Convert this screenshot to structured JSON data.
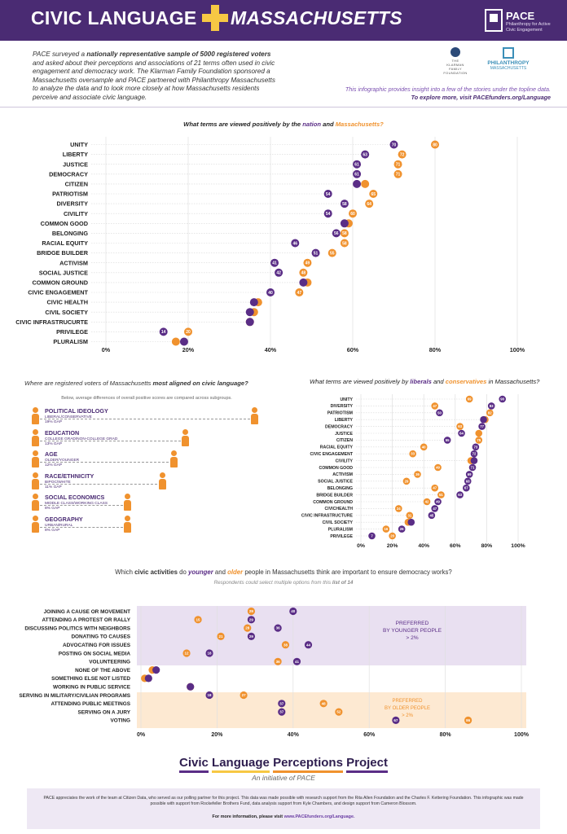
{
  "header": {
    "title_left": "CIVIC LANGUAGE",
    "title_right": "MASSACHUSETTS",
    "logo_name": "PACE",
    "logo_sub": "Philanthropy for Active Civic Engagement"
  },
  "intro": {
    "t1": "PACE surveyed a ",
    "t1b": "nationally representative sample of 5000 registered voters",
    "t2": " and asked about their perceptions and associations of 21 terms often used in civic engagement and democracy work. The Klarman Family Foundation sponsored a Massachusetts oversample and PACE partnered with Philanthropy Massachusetts to analyze the data and to look more closely at how Massachusetts residents perceive and associate civic language."
  },
  "partners": {
    "klarman": "THE KLARMAN FAMILY FOUNDATION",
    "phil_1": "PHILANTHROPY",
    "phil_2": "MASSACHUSETTS"
  },
  "explore": {
    "line1": "This infographic provides insight into a few of the stories under the topline data.",
    "line2": "To explore more, visit PACEfunders.org/Language"
  },
  "colors": {
    "purple": "#5a2d86",
    "orange": "#f0922e",
    "header": "#4a2b73",
    "yellow": "#f7c844"
  },
  "chart_data": [
    {
      "type": "scatter",
      "title_pre": "What terms are viewed positively by the ",
      "title_s1": "nation",
      "title_mid": " and ",
      "title_s2": "Massachusetts?",
      "xlim": [
        0,
        100
      ],
      "ticks": [
        "0%",
        "20%",
        "40%",
        "60%",
        "80%",
        "100%"
      ],
      "series": [
        {
          "name": "nation",
          "color": "#5a2d86"
        },
        {
          "name": "Massachusetts",
          "color": "#f0922e"
        }
      ],
      "rows": [
        {
          "term": "UNITY",
          "nation": 70,
          "ma": 80
        },
        {
          "term": "LIBERTY",
          "nation": 63,
          "ma": 72
        },
        {
          "term": "JUSTICE",
          "nation": 61,
          "ma": 71
        },
        {
          "term": "DEMOCRACY",
          "nation": 61,
          "ma": 71
        },
        {
          "term": "CITIZEN",
          "nation": 61,
          "ma": 63
        },
        {
          "term": "PATRIOTISM",
          "nation": 54,
          "ma": 65
        },
        {
          "term": "DIVERSITY",
          "nation": 58,
          "ma": 64
        },
        {
          "term": "CIVILITY",
          "nation": 54,
          "ma": 60
        },
        {
          "term": "COMMON GOOD",
          "nation": 58,
          "ma": 59
        },
        {
          "term": "BELONGING",
          "nation": 56,
          "ma": 58
        },
        {
          "term": "RACIAL EQUITY",
          "nation": 46,
          "ma": 58
        },
        {
          "term": "BRIDGE BUILDER",
          "nation": 51,
          "ma": 55
        },
        {
          "term": "ACTIVISM",
          "nation": 41,
          "ma": 49
        },
        {
          "term": "SOCIAL JUSTICE",
          "nation": 42,
          "ma": 48
        },
        {
          "term": "COMMON GROUND",
          "nation": 48,
          "ma": 49
        },
        {
          "term": "CIVIC ENGAGEMENT",
          "nation": 40,
          "ma": 47
        },
        {
          "term": "CIVIC HEALTH",
          "nation": 36,
          "ma": 37
        },
        {
          "term": "CIVIL SOCIETY",
          "nation": 35,
          "ma": 36
        },
        {
          "term": "CIVIC INFRASTRUCURTE",
          "nation": 35,
          "ma": 35
        },
        {
          "term": "PRIVILEGE",
          "nation": 14,
          "ma": 20
        },
        {
          "term": "PLURALISM",
          "nation": 19,
          "ma": 17
        }
      ],
      "labels": [
        [
          "70",
          "80"
        ],
        [
          "63",
          "72"
        ],
        [
          "61",
          "71"
        ],
        [
          "61",
          "71"
        ],
        [
          "",
          ""
        ],
        [
          "54",
          "65"
        ],
        [
          "58",
          "64"
        ],
        [
          "54",
          "60"
        ],
        [
          "",
          ""
        ],
        [
          "56",
          "58"
        ],
        [
          "46",
          "58"
        ],
        [
          "51",
          "55"
        ],
        [
          "41",
          "49"
        ],
        [
          "42",
          "48"
        ],
        [
          "",
          ""
        ],
        [
          "40",
          "47"
        ],
        [
          "",
          ""
        ],
        [
          "",
          ""
        ],
        [
          "",
          ""
        ],
        [
          "14",
          "20"
        ],
        [
          "",
          ""
        ]
      ]
    },
    {
      "type": "scatter",
      "title_pre": "What terms are viewed positively by ",
      "title_s1": "liberals",
      "title_mid": " and ",
      "title_s2": "conservatives",
      "title_post": " in Massachusetts?",
      "xlim": [
        0,
        100
      ],
      "ticks": [
        "0%",
        "20%",
        "40%",
        "60%",
        "80%",
        "100%"
      ],
      "series": [
        {
          "name": "liberals",
          "color": "#5a2d86"
        },
        {
          "name": "conservatives",
          "color": "#f0922e"
        }
      ],
      "rows": [
        {
          "term": "UNITY",
          "lib": 90,
          "con": 69
        },
        {
          "term": "DIVERSITY",
          "lib": 83,
          "con": 47
        },
        {
          "term": "PATRIOTISM",
          "lib": 50,
          "con": 82
        },
        {
          "term": "LIBERTY",
          "lib": 78,
          "con": 79
        },
        {
          "term": "DEMOCRACY",
          "lib": 77,
          "con": 63
        },
        {
          "term": "JUSTICE",
          "lib": 64,
          "con": 75
        },
        {
          "term": "CITIZEN",
          "lib": 55,
          "con": 75
        },
        {
          "term": "RACIAL EQUITY",
          "lib": 73,
          "con": 40
        },
        {
          "term": "CIVIC ENGAGEMENT",
          "lib": 72,
          "con": 33
        },
        {
          "term": "CIVILITY",
          "lib": 72,
          "con": 70
        },
        {
          "term": "COMMON GOOD",
          "lib": 71,
          "con": 49
        },
        {
          "term": "ACTIVISM",
          "lib": 69,
          "con": 36
        },
        {
          "term": "SOCIAL JUSTICE",
          "lib": 68,
          "con": 29
        },
        {
          "term": "BELONGING",
          "lib": 67,
          "con": 47
        },
        {
          "term": "BRIDGE BUILDER",
          "lib": 63,
          "con": 51
        },
        {
          "term": "COMMON GROUND",
          "lib": 49,
          "con": 42
        },
        {
          "term": "CIVICHEALTH",
          "lib": 47,
          "con": 24
        },
        {
          "term": "CIVIC INFRASTRUCTURE",
          "lib": 45,
          "con": 31
        },
        {
          "term": "CIVIL SOCIETY",
          "lib": 32,
          "con": 30
        },
        {
          "term": "PLURALISM",
          "lib": 26,
          "con": 16
        },
        {
          "term": "PRIVILEGE",
          "lib": 7,
          "con": 20
        }
      ],
      "labels": [
        [
          "90",
          "69"
        ],
        [
          "83",
          "47"
        ],
        [
          "50",
          "82"
        ],
        [
          "",
          ""
        ],
        [
          "77",
          "63"
        ],
        [
          "64",
          ""
        ],
        [
          "55",
          "75"
        ],
        [
          "73",
          "40"
        ],
        [
          "72",
          "33"
        ],
        [
          "",
          ""
        ],
        [
          "71",
          "49"
        ],
        [
          "69",
          "36"
        ],
        [
          "68",
          "29"
        ],
        [
          "67",
          "47"
        ],
        [
          "63",
          "51"
        ],
        [
          "49",
          "42"
        ],
        [
          "47",
          "24"
        ],
        [
          "45",
          "31"
        ],
        [
          "",
          ""
        ],
        [
          "26",
          "16"
        ],
        [
          "7",
          "20"
        ]
      ]
    },
    {
      "type": "scatter",
      "title_pre": "Which ",
      "title_s1": "civic activities",
      "title_mid": " do ",
      "title_s2": "younger",
      "title_and": " and ",
      "title_s3": "older",
      "title_post": " people in Massachusetts think are important to ensure democracy works?",
      "subtitle_pre": "Respondents could select multiple options from this ",
      "subtitle_b": "list of 14",
      "xlim": [
        0,
        100
      ],
      "ticks": [
        "0%",
        "20%",
        "40%",
        "60%",
        "80%",
        "100%"
      ],
      "series": [
        {
          "name": "younger",
          "color": "#5a2d86"
        },
        {
          "name": "older",
          "color": "#f0922e"
        }
      ],
      "band_young": "PREFERRED BY YOUNGER PEOPLE > 2%",
      "band_young_lines": [
        "PREFERRED",
        "BY YOUNGER PEOPLE",
        "> 2%"
      ],
      "band_old_lines": [
        "PREFERRED",
        "BY OLDER PEOPLE",
        "> 2%"
      ],
      "rows": [
        {
          "term": "JOINING A CAUSE OR MOVEMENT",
          "young": 40,
          "old": 29
        },
        {
          "term": "ATTENDING A PROTEST OR RALLY",
          "young": 29,
          "old": 15
        },
        {
          "term": "DISCUSSING POLITICS WITH NEIGHBORS",
          "young": 36,
          "old": 28
        },
        {
          "term": "DONATING TO CAUSES",
          "young": 29,
          "old": 21
        },
        {
          "term": "ADVOCATING FOR ISSUES",
          "young": 44,
          "old": 38
        },
        {
          "term": "POSTING ON SOCIAL MEDIA",
          "young": 18,
          "old": 12
        },
        {
          "term": "VOLUNTEERING",
          "young": 41,
          "old": 36
        },
        {
          "term": "NONE OF THE ABOVE",
          "young": 4,
          "old": 3
        },
        {
          "term": "SOMETHING ELSE NOT LISTED",
          "young": 2,
          "old": 1
        },
        {
          "term": "WORKING IN PUBLIC SERVICE",
          "young": 13,
          "old": 13
        },
        {
          "term": "SERVING IN MILITARY/CIVILIAN PROGRAMS",
          "young": 18,
          "old": 27
        },
        {
          "term": "ATTENDING PUBLIC MEETINGS",
          "young": 37,
          "old": 48
        },
        {
          "term": "SERVING ON A JURY",
          "young": 37,
          "old": 52
        },
        {
          "term": "VOTING",
          "young": 67,
          "old": 86
        }
      ],
      "labels": [
        [
          "40",
          "29"
        ],
        [
          "29",
          "15"
        ],
        [
          "36",
          "28"
        ],
        [
          "29",
          "21"
        ],
        [
          "44",
          "38"
        ],
        [
          "18",
          "12"
        ],
        [
          "41",
          "36"
        ],
        [
          "",
          ""
        ],
        [
          "",
          ""
        ],
        [
          "",
          ""
        ],
        [
          "18",
          "27"
        ],
        [
          "37",
          "48"
        ],
        [
          "37",
          "52"
        ],
        [
          "67",
          "86"
        ]
      ]
    }
  ],
  "alignment": {
    "title_pre": "Where are registered voters of Massachusetts ",
    "title_b": "most aligned on civic language?",
    "subtitle": "Below, average differences of overall positive scores are compared across subgroups.",
    "rows": [
      {
        "label": "POLITICAL IDEOLOGY",
        "sub": "LIBERAL/CONSERVATIVE",
        "gap": "19% GAP",
        "gap_value": 19
      },
      {
        "label": "EDUCATION",
        "sub": "COLLEGE GRAD/NON-COLLEGE GRAD",
        "gap": "13% GAP",
        "gap_value": 13
      },
      {
        "label": "AGE",
        "sub": "OLDER/YOUNGER",
        "gap": "12% GAP",
        "gap_value": 12
      },
      {
        "label": "RACE/ETHNICITY",
        "sub": "BIPOC/WHITE",
        "gap": "11% GAP",
        "gap_value": 11
      },
      {
        "label": "SOCIAL ECONOMICS",
        "sub": "MIDDLE CLASS/WORKING CLASS",
        "gap": "8% GAP",
        "gap_value": 8
      },
      {
        "label": "GEOGRAPHY",
        "sub": "URBAN/RURAL",
        "gap": "8% GAP",
        "gap_value": 8
      }
    ]
  },
  "project": {
    "w1": "Civic",
    "w2": "Language",
    "w3": "Perceptions",
    "w4": "Project",
    "initiative": "An initiative of PACE"
  },
  "footer": {
    "text": "PACE appreciates the work of the team at Citizen Data, who served as our polling partner for this project. This data was made possible with research support from the Rita Allen Foundation and the Charles F. Kettering Foundation. This infographic was made possible with support from Rockefeller Brothers Fund, data analysis support from Kyle Chambers, and design support from Cameron Blossom.",
    "more_pre": "For more information, please visit ",
    "more_link": "www.PACEfunders.org/Language."
  }
}
